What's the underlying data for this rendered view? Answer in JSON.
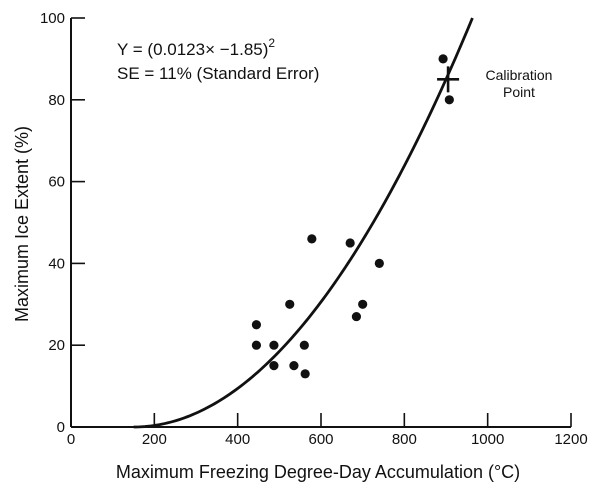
{
  "chart_data": {
    "type": "scatter",
    "xlabel": "Maximum Freezing Degree-Day Accumulation (°C)",
    "ylabel": "Maximum Ice Extent (%)",
    "xlim": [
      0,
      1200
    ],
    "ylim": [
      0,
      100
    ],
    "xticks": [
      "0",
      "200",
      "400",
      "600",
      "800",
      "1000",
      "1200"
    ],
    "yticks": [
      "0",
      "20",
      "40",
      "60",
      "80",
      "100"
    ],
    "equation": "Y = (0.0123× −1.85)²",
    "equation_base": "Y = (0.0123× −1.85)",
    "equation_exp": "2",
    "standard_error": "SE = 11% (Standard Error)",
    "calibration_label": [
      "Calibration",
      "Point"
    ],
    "calibration_point": {
      "x": 905,
      "y": 85
    },
    "fit": {
      "coef": 0.0123,
      "offset": -1.85,
      "power": 2
    },
    "points": [
      {
        "x": 445,
        "y": 25
      },
      {
        "x": 445,
        "y": 20
      },
      {
        "x": 487,
        "y": 20
      },
      {
        "x": 487,
        "y": 15
      },
      {
        "x": 525,
        "y": 30
      },
      {
        "x": 535,
        "y": 15
      },
      {
        "x": 560,
        "y": 20
      },
      {
        "x": 562,
        "y": 13
      },
      {
        "x": 578,
        "y": 46
      },
      {
        "x": 670,
        "y": 45
      },
      {
        "x": 685,
        "y": 27
      },
      {
        "x": 700,
        "y": 30
      },
      {
        "x": 740,
        "y": 40
      },
      {
        "x": 893,
        "y": 90
      },
      {
        "x": 908,
        "y": 80
      }
    ]
  }
}
